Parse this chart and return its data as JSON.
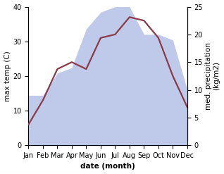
{
  "months": [
    "Jan",
    "Feb",
    "Mar",
    "Apr",
    "May",
    "Jun",
    "Jul",
    "Aug",
    "Sep",
    "Oct",
    "Nov",
    "Dec"
  ],
  "max_temp": [
    6,
    13,
    22,
    24,
    22,
    31,
    32,
    37,
    36,
    31,
    20,
    11
  ],
  "precipitation": [
    9,
    9,
    13,
    14,
    21,
    24,
    25,
    25,
    20,
    20,
    19,
    10
  ],
  "temp_color": "#8b3a4a",
  "precip_fill_color": "#b8c4e8",
  "background_color": "#ffffff",
  "ylim_temp": [
    0,
    40
  ],
  "ylim_precip": [
    0,
    25
  ],
  "ylabel_left": "max temp (C)",
  "ylabel_right": "med. precipitation\n(kg/m2)",
  "xlabel": "date (month)",
  "axis_fontsize": 7.5,
  "tick_fontsize": 7,
  "line_width": 1.6
}
